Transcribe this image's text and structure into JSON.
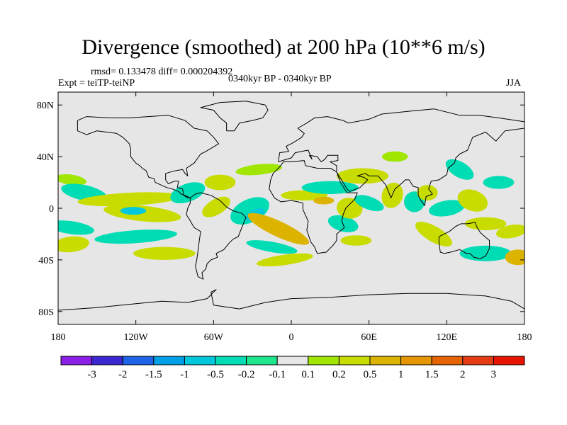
{
  "title": "Divergence (smoothed) at 200 hPa (10**6 m/s)",
  "stats": "rmsd= 0.133478 diff= 0.000204392",
  "experiment": "Expt = teiTP-teiNP",
  "period": "0340kyr BP - 0340kyr BP",
  "season": "JJA",
  "map": {
    "projection": "cylindrical-equidistant",
    "lon_range": [
      -180,
      180
    ],
    "lat_range": [
      -90,
      90
    ],
    "ocean_color": "#e6e6e6",
    "coast_color": "#000000",
    "lat_ticks": [
      {
        "value": 80,
        "label": "80N"
      },
      {
        "value": 40,
        "label": "40N"
      },
      {
        "value": 0,
        "label": "0"
      },
      {
        "value": -40,
        "label": "40S"
      },
      {
        "value": -80,
        "label": "80S"
      }
    ],
    "lon_ticks": [
      {
        "value": -180,
        "label": "180"
      },
      {
        "value": -120,
        "label": "120W"
      },
      {
        "value": -60,
        "label": "60W"
      },
      {
        "value": 0,
        "label": "0"
      },
      {
        "value": 60,
        "label": "60E"
      },
      {
        "value": 120,
        "label": "120E"
      },
      {
        "value": 180,
        "label": "180"
      }
    ],
    "anomalies": [
      {
        "lon": -170,
        "lat": 22,
        "rx": 12,
        "ry": 4,
        "level": 0.15,
        "rot": 8
      },
      {
        "lon": -160,
        "lat": 12,
        "rx": 18,
        "ry": 6,
        "level": -0.3,
        "rot": 12
      },
      {
        "lon": -170,
        "lat": -15,
        "rx": 18,
        "ry": 5,
        "level": -0.3,
        "rot": 8
      },
      {
        "lon": -170,
        "lat": -28,
        "rx": 14,
        "ry": 6,
        "level": 0.3,
        "rot": -6
      },
      {
        "lon": -125,
        "lat": 7,
        "rx": 40,
        "ry": 5,
        "level": 0.3,
        "rot": -3
      },
      {
        "lon": -115,
        "lat": -4,
        "rx": 30,
        "ry": 6,
        "level": 0.4,
        "rot": 6
      },
      {
        "lon": -122,
        "lat": -2,
        "rx": 10,
        "ry": 3,
        "level": -0.7,
        "rot": 0
      },
      {
        "lon": -120,
        "lat": -22,
        "rx": 32,
        "ry": 5,
        "level": -0.3,
        "rot": -4
      },
      {
        "lon": -98,
        "lat": -35,
        "rx": 24,
        "ry": 5,
        "level": 0.3,
        "rot": 0
      },
      {
        "lon": -80,
        "lat": 12,
        "rx": 14,
        "ry": 7,
        "level": -0.4,
        "rot": -20
      },
      {
        "lon": -55,
        "lat": 20,
        "rx": 12,
        "ry": 6,
        "level": 0.2,
        "rot": 0
      },
      {
        "lon": -58,
        "lat": 1,
        "rx": 12,
        "ry": 6,
        "level": 0.25,
        "rot": -30
      },
      {
        "lon": -32,
        "lat": -2,
        "rx": 16,
        "ry": 9,
        "level": -0.45,
        "rot": -25
      },
      {
        "lon": -28,
        "lat": -5,
        "rx": 8,
        "ry": 4,
        "level": -0.9,
        "rot": -25
      },
      {
        "lon": -10,
        "lat": -16,
        "rx": 26,
        "ry": 6,
        "level": 0.5,
        "rot": 25
      },
      {
        "lon": -15,
        "lat": -30,
        "rx": 20,
        "ry": 4,
        "level": -0.25,
        "rot": 10
      },
      {
        "lon": -5,
        "lat": -40,
        "rx": 22,
        "ry": 4,
        "level": 0.3,
        "rot": -8
      },
      {
        "lon": -25,
        "lat": 30,
        "rx": 18,
        "ry": 4,
        "level": 0.15,
        "rot": -6
      },
      {
        "lon": 10,
        "lat": 10,
        "rx": 18,
        "ry": 4,
        "level": 0.25,
        "rot": 0
      },
      {
        "lon": 30,
        "lat": 16,
        "rx": 22,
        "ry": 5,
        "level": -0.25,
        "rot": 0
      },
      {
        "lon": 25,
        "lat": 6,
        "rx": 8,
        "ry": 3,
        "level": 0.6,
        "rot": 0
      },
      {
        "lon": 40,
        "lat": -12,
        "rx": 12,
        "ry": 6,
        "level": -0.45,
        "rot": 15
      },
      {
        "lon": 50,
        "lat": -25,
        "rx": 12,
        "ry": 4,
        "level": 0.2,
        "rot": 0
      },
      {
        "lon": 45,
        "lat": 0,
        "rx": 10,
        "ry": 8,
        "level": 0.45,
        "rot": 10
      },
      {
        "lon": 60,
        "lat": 4,
        "rx": 12,
        "ry": 5,
        "level": -0.3,
        "rot": 20
      },
      {
        "lon": 55,
        "lat": 25,
        "rx": 20,
        "ry": 6,
        "level": 0.2,
        "rot": 0
      },
      {
        "lon": 80,
        "lat": 40,
        "rx": 10,
        "ry": 4,
        "level": 0.15,
        "rot": 0
      },
      {
        "lon": 78,
        "lat": 10,
        "rx": 8,
        "ry": 10,
        "level": 0.4,
        "rot": 20
      },
      {
        "lon": 95,
        "lat": 5,
        "rx": 8,
        "ry": 8,
        "level": -0.35,
        "rot": 0
      },
      {
        "lon": 105,
        "lat": 12,
        "rx": 8,
        "ry": 6,
        "level": 0.3,
        "rot": 0
      },
      {
        "lon": 120,
        "lat": 0,
        "rx": 14,
        "ry": 6,
        "level": -0.45,
        "rot": -10
      },
      {
        "lon": 130,
        "lat": 30,
        "rx": 12,
        "ry": 6,
        "level": -0.35,
        "rot": 30
      },
      {
        "lon": 140,
        "lat": 6,
        "rx": 12,
        "ry": 8,
        "level": 0.3,
        "rot": 20
      },
      {
        "lon": 160,
        "lat": 20,
        "rx": 12,
        "ry": 5,
        "level": -0.3,
        "rot": 0
      },
      {
        "lon": 110,
        "lat": -20,
        "rx": 16,
        "ry": 6,
        "level": 0.35,
        "rot": 30
      },
      {
        "lon": 150,
        "lat": -12,
        "rx": 16,
        "ry": 5,
        "level": 0.2,
        "rot": 0
      },
      {
        "lon": 150,
        "lat": -35,
        "rx": 20,
        "ry": 6,
        "level": -0.3,
        "rot": 0
      },
      {
        "lon": 170,
        "lat": -18,
        "rx": 12,
        "ry": 5,
        "level": 0.3,
        "rot": -10
      },
      {
        "lon": 175,
        "lat": -38,
        "rx": 10,
        "ry": 6,
        "level": 0.6,
        "rot": 0
      }
    ],
    "land": [
      [
        [
          -165,
          68
        ],
        [
          -158,
          71
        ],
        [
          -140,
          70
        ],
        [
          -125,
          70
        ],
        [
          -95,
          72
        ],
        [
          -82,
          68
        ],
        [
          -75,
          62
        ],
        [
          -65,
          60
        ],
        [
          -60,
          55
        ],
        [
          -56,
          50
        ],
        [
          -66,
          44
        ],
        [
          -70,
          42
        ],
        [
          -75,
          35
        ],
        [
          -81,
          31
        ],
        [
          -80,
          25
        ],
        [
          -82,
          27
        ],
        [
          -84,
          30
        ],
        [
          -90,
          29
        ],
        [
          -97,
          27
        ],
        [
          -97,
          22
        ],
        [
          -95,
          19
        ],
        [
          -90,
          21
        ],
        [
          -87,
          21
        ],
        [
          -88,
          16
        ],
        [
          -84,
          15
        ],
        [
          -83,
          10
        ],
        [
          -80,
          8
        ],
        [
          -78,
          8
        ],
        [
          -80,
          9
        ],
        [
          -85,
          11
        ],
        [
          -87,
          13
        ],
        [
          -92,
          15
        ],
        [
          -96,
          16
        ],
        [
          -105,
          20
        ],
        [
          -106,
          23
        ],
        [
          -110,
          24
        ],
        [
          -112,
          29
        ],
        [
          -115,
          31
        ],
        [
          -117,
          33
        ],
        [
          -120,
          35
        ],
        [
          -124,
          40
        ],
        [
          -124,
          46
        ],
        [
          -125,
          50
        ],
        [
          -130,
          55
        ],
        [
          -135,
          58
        ],
        [
          -150,
          60
        ],
        [
          -158,
          57
        ],
        [
          -165,
          60
        ],
        [
          -165,
          68
        ]
      ],
      [
        [
          -78,
          8
        ],
        [
          -74,
          11
        ],
        [
          -70,
          12
        ],
        [
          -62,
          10
        ],
        [
          -55,
          6
        ],
        [
          -50,
          1
        ],
        [
          -45,
          -2
        ],
        [
          -38,
          -4
        ],
        [
          -35,
          -7
        ],
        [
          -37,
          -12
        ],
        [
          -39,
          -17
        ],
        [
          -41,
          -22
        ],
        [
          -45,
          -24
        ],
        [
          -48,
          -27
        ],
        [
          -52,
          -32
        ],
        [
          -58,
          -35
        ],
        [
          -57,
          -38
        ],
        [
          -62,
          -40
        ],
        [
          -65,
          -43
        ],
        [
          -66,
          -47
        ],
        [
          -69,
          -50
        ],
        [
          -68,
          -55
        ],
        [
          -72,
          -53
        ],
        [
          -74,
          -45
        ],
        [
          -73,
          -40
        ],
        [
          -72,
          -33
        ],
        [
          -71,
          -25
        ],
        [
          -70,
          -18
        ],
        [
          -75,
          -15
        ],
        [
          -79,
          -8
        ],
        [
          -81,
          -5
        ],
        [
          -80,
          0
        ],
        [
          -78,
          4
        ],
        [
          -78,
          8
        ]
      ],
      [
        [
          -17,
          15
        ],
        [
          -16,
          22
        ],
        [
          -14,
          27
        ],
        [
          -9,
          32
        ],
        [
          -6,
          36
        ],
        [
          0,
          36
        ],
        [
          10,
          37
        ],
        [
          11,
          33
        ],
        [
          20,
          31
        ],
        [
          30,
          31
        ],
        [
          32,
          30
        ],
        [
          35,
          28
        ],
        [
          38,
          20
        ],
        [
          43,
          12
        ],
        [
          51,
          12
        ],
        [
          49,
          7
        ],
        [
          42,
          0
        ],
        [
          40,
          -5
        ],
        [
          39,
          -10
        ],
        [
          41,
          -15
        ],
        [
          35,
          -20
        ],
        [
          35,
          -25
        ],
        [
          32,
          -29
        ],
        [
          27,
          -34
        ],
        [
          20,
          -35
        ],
        [
          18,
          -30
        ],
        [
          15,
          -26
        ],
        [
          12,
          -17
        ],
        [
          13,
          -10
        ],
        [
          9,
          -1
        ],
        [
          9,
          4
        ],
        [
          5,
          5
        ],
        [
          0,
          6
        ],
        [
          -8,
          5
        ],
        [
          -13,
          8
        ],
        [
          -17,
          15
        ]
      ],
      [
        [
          -10,
          36
        ],
        [
          -9,
          43
        ],
        [
          -2,
          44
        ],
        [
          -4,
          48
        ],
        [
          0,
          50
        ],
        [
          5,
          53
        ],
        [
          8,
          55
        ],
        [
          10,
          58
        ],
        [
          5,
          62
        ],
        [
          12,
          66
        ],
        [
          18,
          70
        ],
        [
          28,
          71
        ],
        [
          40,
          68
        ],
        [
          44,
          66
        ],
        [
          60,
          69
        ],
        [
          70,
          73
        ],
        [
          90,
          75
        ],
        [
          110,
          77
        ],
        [
          130,
          72
        ],
        [
          145,
          72
        ],
        [
          160,
          70
        ],
        [
          180,
          67
        ],
        [
          180,
          62
        ],
        [
          165,
          60
        ],
        [
          158,
          52
        ],
        [
          150,
          59
        ],
        [
          140,
          55
        ],
        [
          136,
          45
        ],
        [
          130,
          42
        ],
        [
          127,
          39
        ],
        [
          126,
          35
        ],
        [
          121,
          31
        ],
        [
          120,
          26
        ],
        [
          114,
          22
        ],
        [
          108,
          21
        ],
        [
          106,
          15
        ],
        [
          109,
          11
        ],
        [
          104,
          9
        ],
        [
          103,
          2
        ],
        [
          100,
          6
        ],
        [
          98,
          10
        ],
        [
          98,
          16
        ],
        [
          94,
          17
        ],
        [
          91,
          22
        ],
        [
          88,
          22
        ],
        [
          86,
          20
        ],
        [
          80,
          15
        ],
        [
          77,
          8
        ],
        [
          73,
          18
        ],
        [
          67,
          25
        ],
        [
          60,
          25
        ],
        [
          57,
          27
        ],
        [
          51,
          25
        ],
        [
          56,
          24
        ],
        [
          59,
          22
        ],
        [
          53,
          16
        ],
        [
          45,
          13
        ],
        [
          43,
          15
        ],
        [
          40,
          20
        ],
        [
          35,
          28
        ],
        [
          35,
          33
        ],
        [
          30,
          36
        ],
        [
          36,
          37
        ],
        [
          36,
          41
        ],
        [
          28,
          41
        ],
        [
          26,
          38
        ],
        [
          23,
          36
        ],
        [
          20,
          40
        ],
        [
          14,
          41
        ],
        [
          16,
          38
        ],
        [
          13,
          45
        ],
        [
          8,
          44
        ],
        [
          3,
          43
        ],
        [
          0,
          39
        ],
        [
          -10,
          36
        ]
      ],
      [
        [
          114,
          -22
        ],
        [
          114,
          -26
        ],
        [
          115,
          -34
        ],
        [
          118,
          -35
        ],
        [
          123,
          -34
        ],
        [
          130,
          -32
        ],
        [
          135,
          -35
        ],
        [
          138,
          -35
        ],
        [
          141,
          -38
        ],
        [
          146,
          -39
        ],
        [
          150,
          -37
        ],
        [
          153,
          -31
        ],
        [
          153,
          -25
        ],
        [
          146,
          -19
        ],
        [
          143,
          -14
        ],
        [
          142,
          -11
        ],
        [
          136,
          -12
        ],
        [
          131,
          -12
        ],
        [
          127,
          -14
        ],
        [
          122,
          -18
        ],
        [
          118,
          -20
        ],
        [
          114,
          -22
        ]
      ],
      [
        [
          -50,
          60
        ],
        [
          -44,
          60
        ],
        [
          -42,
          63
        ],
        [
          -40,
          66
        ],
        [
          -30,
          68
        ],
        [
          -22,
          70
        ],
        [
          -18,
          76
        ],
        [
          -20,
          80
        ],
        [
          -35,
          83
        ],
        [
          -55,
          82
        ],
        [
          -70,
          78
        ],
        [
          -60,
          76
        ],
        [
          -55,
          70
        ],
        [
          -50,
          66
        ],
        [
          -50,
          60
        ]
      ],
      [
        [
          -180,
          -79
        ],
        [
          -150,
          -77
        ],
        [
          -120,
          -74
        ],
        [
          -100,
          -72
        ],
        [
          -80,
          -73
        ],
        [
          -65,
          -70
        ],
        [
          -58,
          -63
        ],
        [
          -62,
          -65
        ],
        [
          -60,
          -75
        ],
        [
          -40,
          -78
        ],
        [
          -20,
          -73
        ],
        [
          0,
          -70
        ],
        [
          30,
          -69
        ],
        [
          60,
          -67
        ],
        [
          90,
          -66
        ],
        [
          120,
          -66
        ],
        [
          150,
          -68
        ],
        [
          170,
          -72
        ],
        [
          180,
          -78
        ]
      ]
    ]
  },
  "colorbar": {
    "colors": [
      "#8c1ee6",
      "#3c28d2",
      "#1e64e6",
      "#00a0e6",
      "#00c8dc",
      "#00dcb4",
      "#1ee68c",
      "#e6e6e6",
      "#a0e600",
      "#c8dc00",
      "#dcb400",
      "#e69600",
      "#e66400",
      "#e63c14",
      "#e61400"
    ],
    "labels": [
      "-3",
      "-2",
      "-1.5",
      "-1",
      "-0.5",
      "-0.2",
      "-0.1",
      "0.1",
      "0.2",
      "0.5",
      "1",
      "1.5",
      "2",
      "3"
    ]
  }
}
